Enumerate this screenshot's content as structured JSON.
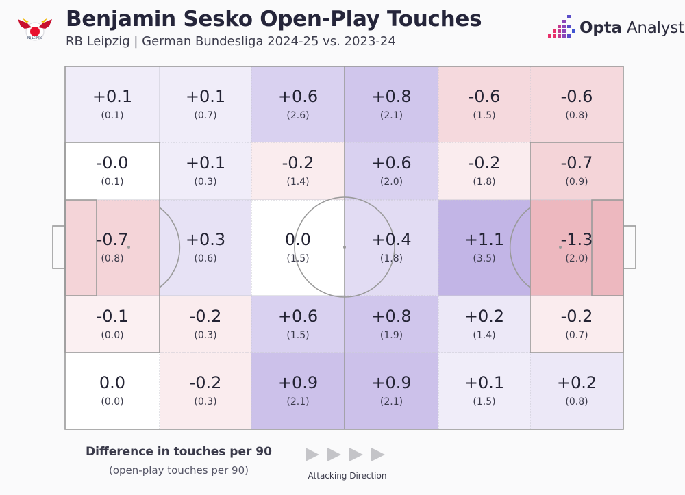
{
  "header": {
    "title": "Benjamin Sesko Open-Play Touches",
    "subtitle": "RB Leipzig | German Bundesliga 2024-25 vs. 2023-24",
    "brand_bold": "Opta",
    "brand_light": "Analyst",
    "club_logo_text": "RB LEIPZIG"
  },
  "legend": {
    "title": "Difference in touches per 90",
    "subtitle": "(open-play touches per 90)",
    "direction_label": "Attacking Direction"
  },
  "colors": {
    "positive": "#9b86d6",
    "negative": "#e59aa4",
    "neutral": "#ffffff",
    "pitch_line": "#9a9a9a",
    "text": "#232333"
  },
  "chart_data": {
    "type": "heatmap",
    "title": "Benjamin Sesko Open-Play Touches",
    "subtitle": "RB Leipzig | German Bundesliga 2024-25 vs. 2023-24",
    "rows": 5,
    "cols": 6,
    "cells": [
      [
        {
          "diff": "+0.1",
          "value": "(0.1)"
        },
        {
          "diff": "+0.1",
          "value": "(0.7)"
        },
        {
          "diff": "+0.6",
          "value": "(2.6)"
        },
        {
          "diff": "+0.8",
          "value": "(2.1)"
        },
        {
          "diff": "-0.6",
          "value": "(1.5)"
        },
        {
          "diff": "-0.6",
          "value": "(0.8)"
        }
      ],
      [
        {
          "diff": "-0.0",
          "value": "(0.1)"
        },
        {
          "diff": "+0.1",
          "value": "(0.3)"
        },
        {
          "diff": "-0.2",
          "value": "(1.4)"
        },
        {
          "diff": "+0.6",
          "value": "(2.0)"
        },
        {
          "diff": "-0.2",
          "value": "(1.8)"
        },
        {
          "diff": "-0.7",
          "value": "(0.9)"
        }
      ],
      [
        {
          "diff": "-0.7",
          "value": "(0.8)"
        },
        {
          "diff": "+0.3",
          "value": "(0.6)"
        },
        {
          "diff": "0.0",
          "value": "(1.5)"
        },
        {
          "diff": "+0.4",
          "value": "(1.8)"
        },
        {
          "diff": "+1.1",
          "value": "(3.5)"
        },
        {
          "diff": "-1.3",
          "value": "(2.0)"
        }
      ],
      [
        {
          "diff": "-0.1",
          "value": "(0.0)"
        },
        {
          "diff": "-0.2",
          "value": "(0.3)"
        },
        {
          "diff": "+0.6",
          "value": "(1.5)"
        },
        {
          "diff": "+0.8",
          "value": "(1.9)"
        },
        {
          "diff": "+0.2",
          "value": "(1.4)"
        },
        {
          "diff": "-0.2",
          "value": "(0.7)"
        }
      ],
      [
        {
          "diff": "0.0",
          "value": "(0.0)"
        },
        {
          "diff": "-0.2",
          "value": "(0.3)"
        },
        {
          "diff": "+0.9",
          "value": "(2.1)"
        },
        {
          "diff": "+0.9",
          "value": "(2.1)"
        },
        {
          "diff": "+0.1",
          "value": "(1.5)"
        },
        {
          "diff": "+0.2",
          "value": "(0.8)"
        }
      ]
    ]
  }
}
